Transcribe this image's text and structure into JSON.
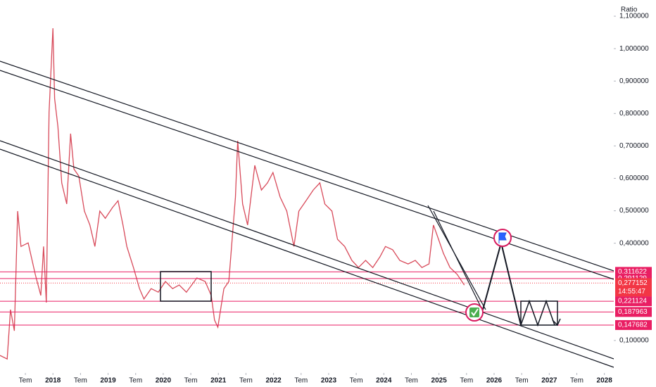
{
  "chart_data": {
    "type": "line",
    "y_axis_label": "Ratio",
    "color": "#d84a5a",
    "x": [
      2017.04,
      2017.17,
      2017.23,
      2017.3,
      2017.36,
      2017.42,
      2017.55,
      2017.68,
      2017.78,
      2017.83,
      2017.88,
      2017.93,
      2018.0,
      2018.03,
      2018.09,
      2018.16,
      2018.25,
      2018.32,
      2018.38,
      2018.47,
      2018.57,
      2018.67,
      2018.76,
      2018.85,
      2018.95,
      2019.08,
      2019.18,
      2019.27,
      2019.34,
      2019.46,
      2019.57,
      2019.65,
      2019.78,
      2019.91,
      2020.04,
      2020.17,
      2020.29,
      2020.42,
      2020.61,
      2020.76,
      2020.87,
      2020.93,
      2020.99,
      2021.1,
      2021.19,
      2021.25,
      2021.31,
      2021.35,
      2021.44,
      2021.53,
      2021.66,
      2021.78,
      2021.89,
      2021.99,
      2022.12,
      2022.24,
      2022.37,
      2022.46,
      2022.59,
      2022.72,
      2022.84,
      2022.93,
      2023.06,
      2023.16,
      2023.29,
      2023.42,
      2023.54,
      2023.67,
      2023.8,
      2023.93,
      2024.03,
      2024.16,
      2024.29,
      2024.44,
      2024.57,
      2024.69,
      2024.82,
      2024.9,
      2024.97,
      2025.08,
      2025.2,
      2025.33,
      2025.46
    ],
    "values": [
      0.054,
      0.043,
      0.195,
      0.13,
      0.499,
      0.39,
      0.401,
      0.304,
      0.239,
      0.39,
      0.217,
      0.803,
      1.063,
      0.846,
      0.759,
      0.586,
      0.521,
      0.738,
      0.629,
      0.607,
      0.499,
      0.456,
      0.39,
      0.499,
      0.477,
      0.51,
      0.531,
      0.456,
      0.39,
      0.325,
      0.26,
      0.228,
      0.26,
      0.249,
      0.282,
      0.26,
      0.271,
      0.249,
      0.293,
      0.282,
      0.239,
      0.163,
      0.141,
      0.26,
      0.282,
      0.412,
      0.542,
      0.716,
      0.521,
      0.456,
      0.64,
      0.564,
      0.586,
      0.618,
      0.542,
      0.499,
      0.39,
      0.499,
      0.531,
      0.564,
      0.586,
      0.521,
      0.499,
      0.412,
      0.39,
      0.347,
      0.325,
      0.347,
      0.325,
      0.358,
      0.39,
      0.38,
      0.347,
      0.336,
      0.347,
      0.325,
      0.336,
      0.456,
      0.423,
      0.369,
      0.325,
      0.304,
      0.271
    ],
    "xlim": [
      2017.04,
      2028.17
    ],
    "ylim": [
      0.0,
      1.15
    ],
    "xticks": [
      {
        "value": 2017.5,
        "label": "Tem"
      },
      2018,
      {
        "value": 2018.5,
        "label": "Tem"
      },
      2019,
      {
        "value": 2019.5,
        "label": "Tem"
      },
      2020,
      {
        "value": 2020.5,
        "label": "Tem"
      },
      2021,
      {
        "value": 2021.5,
        "label": "Tem"
      },
      2022,
      {
        "value": 2022.5,
        "label": "Tem"
      },
      2023,
      {
        "value": 2023.5,
        "label": "Tem"
      },
      2024,
      {
        "value": 2024.5,
        "label": "Tem"
      },
      2025,
      {
        "value": 2025.5,
        "label": "Tem"
      },
      2026,
      {
        "value": 2026.5,
        "label": "Tem"
      },
      2027,
      {
        "value": 2027.5,
        "label": "Tem"
      },
      2028
    ],
    "yticks": [
      {
        "value": 0.1,
        "label": "0,100000"
      },
      {
        "value": 0.4,
        "label": "0,400000"
      },
      {
        "value": 0.5,
        "label": "0,500000"
      },
      {
        "value": 0.6,
        "label": "0,600000"
      },
      {
        "value": 0.7,
        "label": "0,700000"
      },
      {
        "value": 0.8,
        "label": "0,800000"
      },
      {
        "value": 0.9,
        "label": "0,900000"
      },
      {
        "value": 1.0,
        "label": "1,000000"
      },
      {
        "value": 1.1,
        "label": "1,100000"
      }
    ],
    "price_lines": [
      {
        "value": 0.311622,
        "label": "0,311622"
      },
      {
        "value": 0.291129,
        "label": "0,291129"
      },
      {
        "value": 0.221124,
        "label": "0,221124"
      },
      {
        "value": 0.187963,
        "label": "0,187963"
      },
      {
        "value": 0.147682,
        "label": "0,147682"
      }
    ],
    "last_price": {
      "value": 0.277152,
      "label": "0,277152",
      "countdown": "14:55:47"
    }
  }
}
